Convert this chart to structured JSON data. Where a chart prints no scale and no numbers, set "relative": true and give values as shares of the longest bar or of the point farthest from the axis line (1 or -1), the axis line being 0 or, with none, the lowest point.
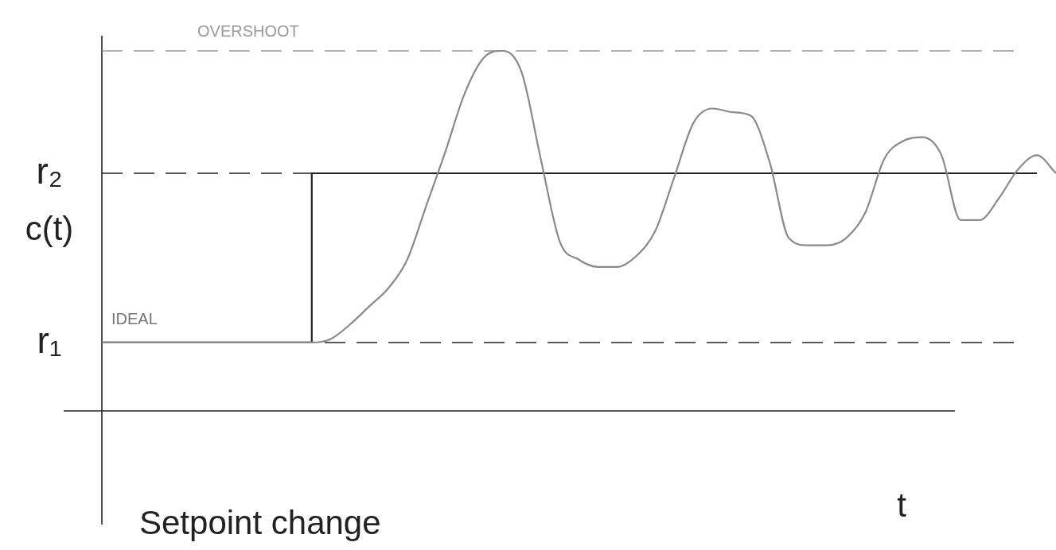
{
  "chart_data": {
    "type": "line",
    "title": "Setpoint change",
    "xlabel": "t",
    "ylabel": "c(t)",
    "relative": true,
    "legend": false,
    "marker": "none",
    "categories": [
      null,
      null,
      null,
      null,
      null,
      null,
      null,
      null,
      null,
      null,
      null,
      null,
      null,
      null,
      null,
      null,
      null,
      null,
      null,
      null,
      null,
      null,
      null,
      null,
      null,
      null,
      null,
      null,
      null,
      null,
      null,
      null,
      null,
      null,
      null,
      null,
      null,
      null,
      null,
      null,
      null,
      null,
      null,
      null,
      null,
      null,
      null,
      null,
      null,
      null,
      null
    ],
    "series": [
      {
        "color": "#8a8a8a",
        "values": [
          0.19,
          0.19,
          0.19,
          0.19,
          0.19,
          0.19,
          0.19,
          0.19,
          0.19,
          0.19,
          0.19,
          0.19,
          0.2,
          0.24,
          0.29,
          0.34,
          0.42,
          0.57,
          0.72,
          0.88,
          0.98,
          1.0,
          0.94,
          0.7,
          0.47,
          0.42,
          0.4,
          0.4,
          0.43,
          0.5,
          0.65,
          0.8,
          0.84,
          0.83,
          0.82,
          0.69,
          0.48,
          0.46,
          0.46,
          0.48,
          0.55,
          0.7,
          0.75,
          0.76,
          0.71,
          0.53,
          0.53,
          0.59,
          0.67,
          0.71,
          0.66
        ]
      },
      {
        "type": "step",
        "color": "#222222",
        "values": [
          0.19,
          0.19,
          0.19,
          0.19,
          0.19,
          0.19,
          0.19,
          0.19,
          0.19,
          0.19,
          0.19,
          0.19,
          0.66,
          0.66,
          0.66,
          0.66,
          0.66,
          0.66,
          0.66,
          0.66,
          0.66,
          0.66,
          0.66,
          0.66,
          0.66,
          0.66,
          0.66,
          0.66,
          0.66,
          0.66,
          0.66,
          0.66,
          0.66,
          0.66,
          0.66,
          0.66,
          0.66,
          0.66,
          0.66,
          0.66,
          0.66,
          0.66,
          0.66,
          0.66,
          0.66,
          0.66,
          0.66,
          0.66,
          0.66,
          0.66,
          null
        ]
      }
    ],
    "ref_lines": [
      {
        "axis": "y",
        "value": 1.0,
        "label": "OVERSHOOT",
        "color": "#9a9a9a",
        "line_style": "dashed"
      },
      {
        "axis": "y",
        "value": 0.66,
        "label": "r₂",
        "color": "#222222",
        "line_style": "dashed"
      },
      {
        "axis": "y",
        "value": 0.19,
        "label": "r₁",
        "color": "#222222",
        "line_style": "dashed"
      }
    ],
    "annotations": [
      {
        "text": "IDEAL",
        "y": 0.19
      }
    ]
  }
}
